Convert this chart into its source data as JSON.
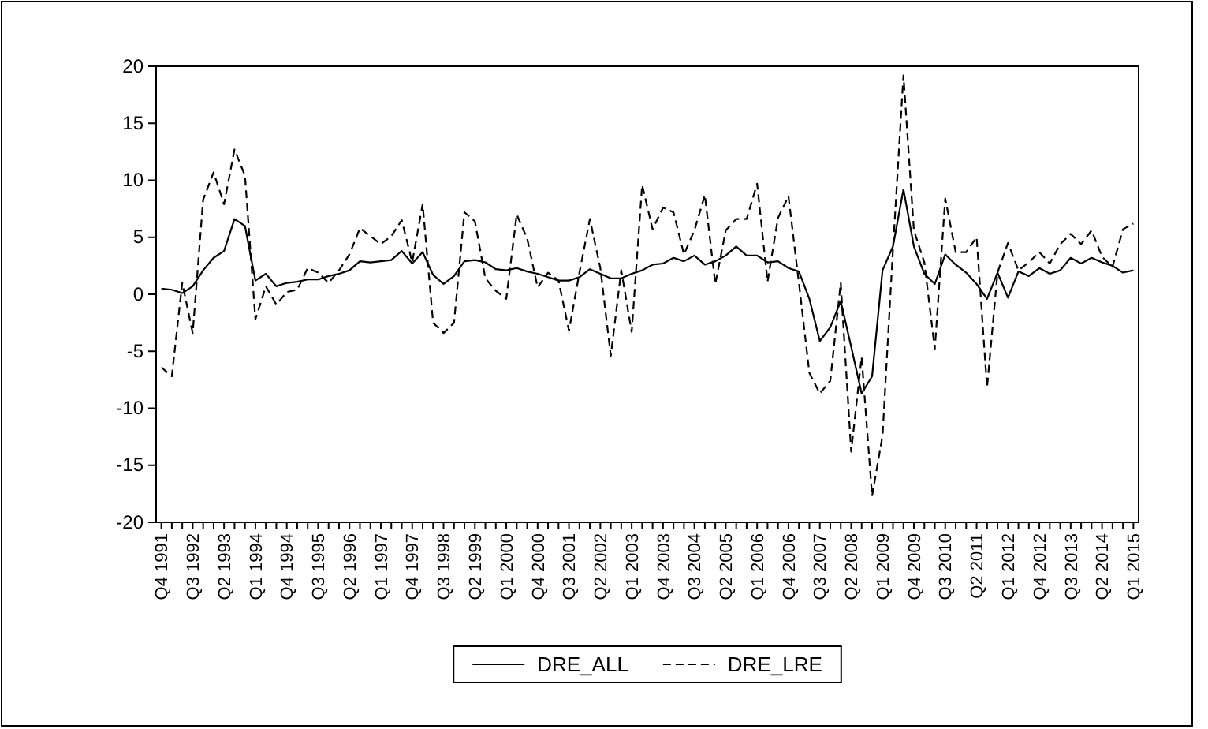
{
  "chart_data": {
    "type": "line",
    "categories": [
      "Q4 1991",
      null,
      null,
      "Q3 1992",
      null,
      null,
      "Q2 1993",
      null,
      null,
      "Q1 1994",
      null,
      null,
      "Q4 1994",
      null,
      null,
      "Q3 1995",
      null,
      null,
      "Q2 1996",
      null,
      null,
      "Q1 1997",
      null,
      null,
      "Q4 1997",
      null,
      null,
      "Q3 1998",
      null,
      null,
      "Q2 1999",
      null,
      null,
      "Q1 2000",
      null,
      null,
      "Q4 2000",
      null,
      null,
      "Q3 2001",
      null,
      null,
      "Q2 2002",
      null,
      null,
      "Q1 2003",
      null,
      null,
      "Q4 2003",
      null,
      null,
      "Q3 2004",
      null,
      null,
      "Q2 2005",
      null,
      null,
      "Q1 2006",
      null,
      null,
      "Q4 2006",
      null,
      null,
      "Q3 2007",
      null,
      null,
      "Q2 2008",
      null,
      null,
      "Q1 2009",
      null,
      null,
      "Q4 2009",
      null,
      null,
      "Q3 2010",
      null,
      null,
      "Q2 2011",
      null,
      null,
      "Q1 2012",
      null,
      null,
      "Q4 2012",
      null,
      null,
      "Q3 2013",
      null,
      null,
      "Q2 2014",
      null,
      null,
      "Q1 2015"
    ],
    "series": [
      {
        "name": "DRE_ALL",
        "color": "#000000",
        "line_style": "solid",
        "values": [
          0.5,
          0.4,
          0.1,
          0.7,
          2.1,
          3.2,
          3.8,
          6.6,
          6.0,
          1.2,
          1.8,
          0.7,
          1.0,
          1.1,
          1.3,
          1.3,
          1.6,
          1.8,
          2.1,
          2.9,
          2.8,
          2.9,
          3.0,
          3.8,
          2.7,
          3.7,
          1.7,
          0.9,
          1.6,
          2.9,
          3.0,
          2.8,
          2.2,
          2.1,
          2.3,
          2.0,
          1.8,
          1.5,
          1.2,
          1.2,
          1.5,
          2.2,
          1.8,
          1.4,
          1.4,
          1.8,
          2.1,
          2.6,
          2.7,
          3.2,
          2.9,
          3.4,
          2.6,
          2.9,
          3.4,
          4.2,
          3.4,
          3.4,
          2.8,
          2.9,
          2.3,
          2.0,
          -0.4,
          -4.1,
          -2.9,
          -0.6,
          -4.6,
          -8.7,
          -7.2,
          2.1,
          4.2,
          9.2,
          4.2,
          1.8,
          0.9,
          3.5,
          2.6,
          1.9,
          0.9,
          -0.4,
          1.9,
          -0.3,
          2.0,
          1.6,
          2.3,
          1.8,
          2.1,
          3.2,
          2.7,
          3.2,
          2.8,
          2.5,
          1.9,
          2.1
        ]
      },
      {
        "name": "DRE_LRE",
        "color": "#000000",
        "line_style": "dashed",
        "values": [
          -6.4,
          -7.2,
          1.0,
          -3.4,
          8.3,
          10.7,
          7.9,
          12.7,
          10.4,
          -2.2,
          0.7,
          -0.9,
          0.2,
          0.4,
          2.3,
          1.9,
          1.0,
          2.1,
          3.5,
          5.8,
          5.1,
          4.4,
          5.1,
          6.5,
          2.8,
          7.9,
          -2.5,
          -3.4,
          -2.5,
          7.2,
          6.4,
          1.4,
          0.3,
          -0.4,
          7.0,
          4.9,
          0.6,
          1.9,
          1.2,
          -3.2,
          1.9,
          6.6,
          2.3,
          -5.4,
          2.1,
          -3.3,
          9.6,
          5.7,
          7.6,
          7.2,
          3.5,
          5.6,
          8.7,
          0.9,
          5.6,
          6.6,
          6.6,
          9.7,
          1.1,
          6.7,
          8.6,
          1.0,
          -6.9,
          -8.7,
          -7.6,
          1.0,
          -13.8,
          -5.5,
          -17.7,
          -12.4,
          4.0,
          19.2,
          5.6,
          2.8,
          -4.8,
          8.4,
          3.7,
          3.7,
          5.0,
          -8.2,
          1.9,
          4.5,
          2.1,
          2.8,
          3.7,
          2.7,
          4.4,
          5.3,
          4.4,
          5.6,
          3.3,
          2.4,
          5.7,
          6.2
        ]
      }
    ],
    "ylim": [
      -20,
      20
    ],
    "yticks": [
      -20,
      -15,
      -10,
      -5,
      0,
      5,
      10,
      15,
      20
    ],
    "grid": false,
    "legend": "bottom",
    "marker": "none"
  }
}
